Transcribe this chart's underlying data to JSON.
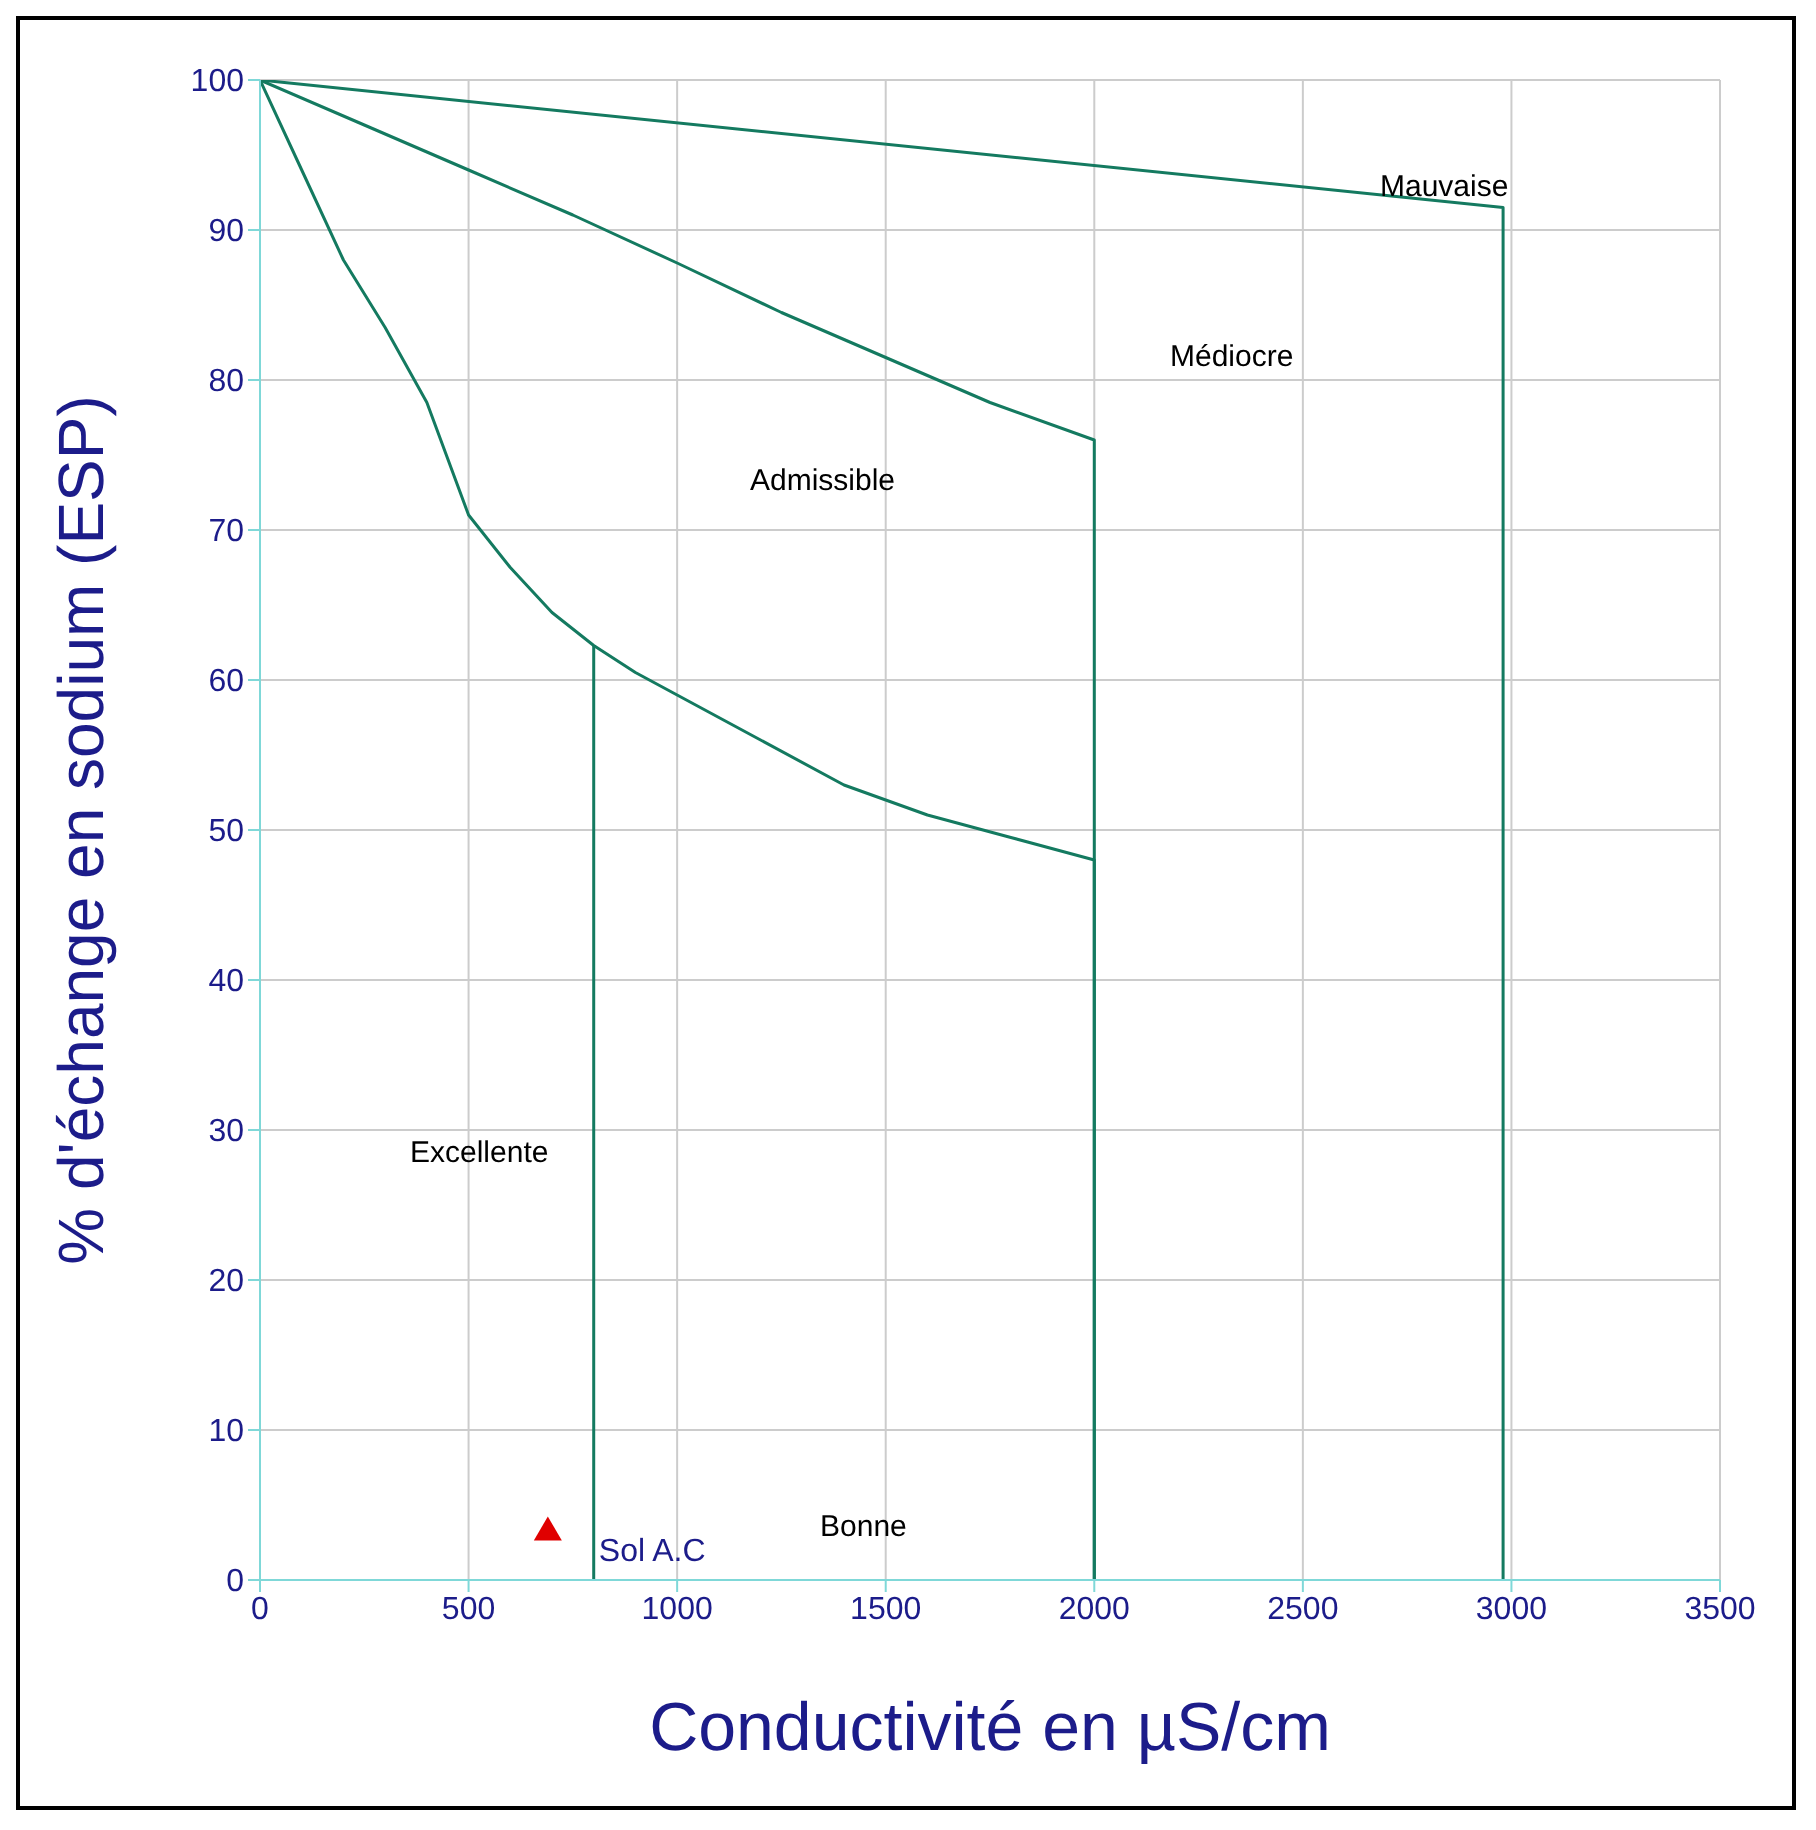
{
  "chart_data": {
    "type": "line",
    "xlabel": "Conductivité en µS/cm",
    "ylabel": "% d'échange en sodium (ESP)",
    "xlim": [
      0,
      3500
    ],
    "ylim": [
      0,
      100
    ],
    "xticks": [
      0,
      500,
      1000,
      1500,
      2000,
      2500,
      3000,
      3500
    ],
    "yticks": [
      0,
      10,
      20,
      30,
      40,
      50,
      60,
      70,
      80,
      90,
      100
    ],
    "grid": true,
    "marker": "none",
    "series": [
      {
        "color": "#147a60",
        "x": [
          0,
          100,
          200,
          300,
          400,
          500,
          600,
          700,
          800,
          900,
          1000,
          1200,
          1400,
          1600,
          1800,
          2000,
          2000
        ],
        "values": [
          100,
          94,
          88,
          83.5,
          78.5,
          71,
          67.5,
          64.5,
          62.3,
          60.5,
          59,
          56,
          53,
          51,
          49.5,
          48,
          0
        ]
      },
      {
        "color": "#147a60",
        "x": [
          800,
          800
        ],
        "values": [
          62.3,
          0
        ]
      },
      {
        "color": "#147a60",
        "x": [
          0,
          250,
          500,
          750,
          1000,
          1250,
          1500,
          1750,
          2000,
          2000
        ],
        "values": [
          100,
          97,
          94,
          91,
          87.8,
          84.5,
          81.5,
          78.5,
          76,
          0
        ]
      },
      {
        "color": "#147a60",
        "x": [
          0,
          2980,
          2980
        ],
        "values": [
          100,
          91.5,
          0
        ]
      },
      {
        "type": "scatter",
        "name": "Sol A.C",
        "marker": "triangle",
        "color": "#e00000",
        "x": [
          690
        ],
        "values": [
          3.3
        ]
      }
    ],
    "annotations": [
      "Mauvaise",
      "Médiocre",
      "Admissible",
      "Excellente",
      "Bonne"
    ]
  }
}
